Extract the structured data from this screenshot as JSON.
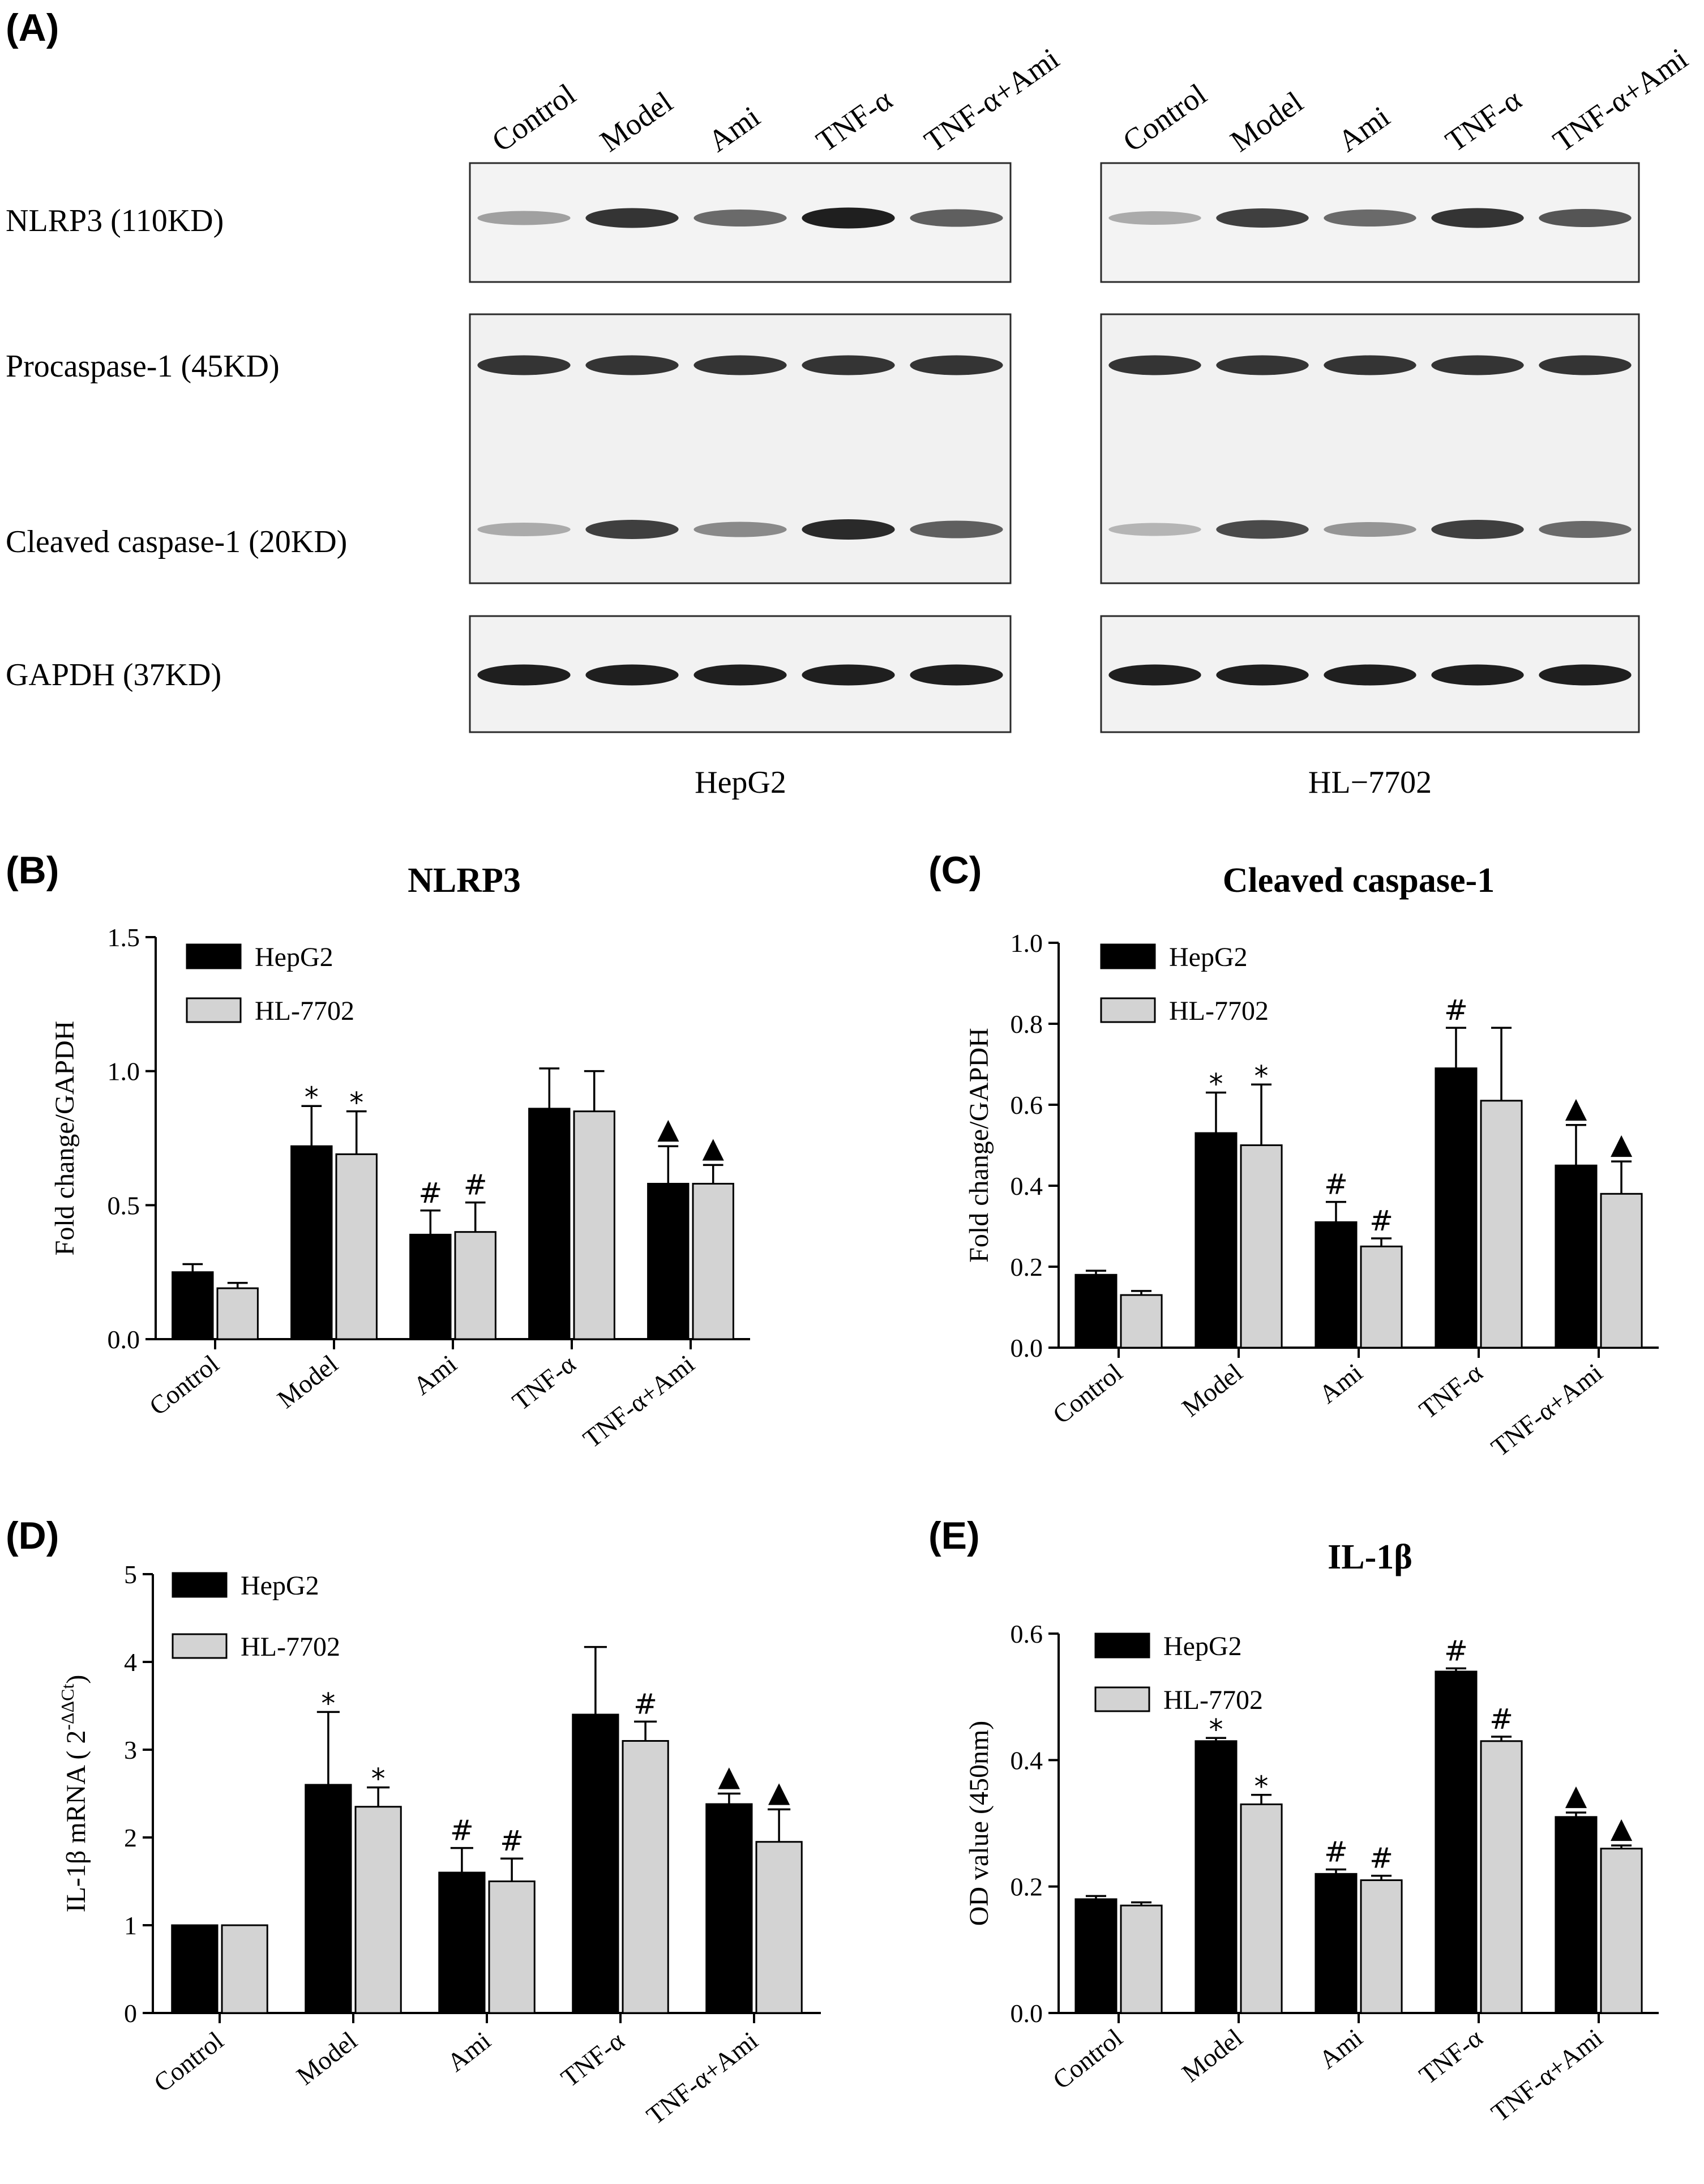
{
  "panel_a": {
    "letter": "(A)",
    "lanes": [
      "Control",
      "Model",
      "Ami",
      "TNF-α",
      "TNF-α+Ami"
    ],
    "row_labels": {
      "nlrp3": "NLRP3 (110KD)",
      "procaspase": "Procaspase-1 (45KD)",
      "cleaved": "Cleaved caspase-1 (20KD)",
      "gapdh": "GAPDH (37KD)"
    },
    "cell_lines": [
      "HepG2",
      "HL−7702"
    ],
    "band_intensity": {
      "HepG2": {
        "nlrp3": [
          0.35,
          0.85,
          0.6,
          0.95,
          0.65
        ],
        "procaspase": [
          0.85,
          0.85,
          0.85,
          0.85,
          0.85
        ],
        "cleaved": [
          0.3,
          0.8,
          0.45,
          0.9,
          0.65
        ],
        "gapdh": [
          0.95,
          0.95,
          0.95,
          0.95,
          0.95
        ]
      },
      "HL-7702": {
        "nlrp3": [
          0.3,
          0.8,
          0.6,
          0.85,
          0.7
        ],
        "procaspase": [
          0.85,
          0.85,
          0.85,
          0.85,
          0.85
        ],
        "cleaved": [
          0.25,
          0.75,
          0.4,
          0.8,
          0.6
        ],
        "gapdh": [
          0.95,
          0.95,
          0.95,
          0.95,
          0.95
        ]
      }
    }
  },
  "chart_data": [
    {
      "id": "B",
      "type": "bar",
      "letter": "(B)",
      "title": "NLRP3",
      "ylabel": "Fold change/GAPDH",
      "ylabel_parts": [
        "Fold change/GAPDH"
      ],
      "ylim": [
        0,
        1.5
      ],
      "yticks": [
        "0.0",
        "0.5",
        "1.0",
        "1.5"
      ],
      "ytick_values": [
        0,
        0.5,
        1.0,
        1.5
      ],
      "categories": [
        "Control",
        "Model",
        "Ami",
        "TNF-α",
        "TNF-α+Ami"
      ],
      "series": [
        {
          "name": "HepG2",
          "color": "#000000",
          "values": [
            0.25,
            0.72,
            0.39,
            0.86,
            0.58
          ],
          "errors": [
            0.03,
            0.15,
            0.09,
            0.15,
            0.14
          ],
          "marks": [
            "",
            "*",
            "#",
            "",
            "▲"
          ]
        },
        {
          "name": "HL-7702",
          "color": "#d3d3d3",
          "values": [
            0.19,
            0.69,
            0.4,
            0.85,
            0.58
          ],
          "errors": [
            0.02,
            0.16,
            0.11,
            0.15,
            0.07
          ],
          "marks": [
            "",
            "*",
            "#",
            "",
            "▲"
          ]
        }
      ]
    },
    {
      "id": "C",
      "type": "bar",
      "letter": "(C)",
      "title": "Cleaved caspase-1",
      "ylabel": "Fold change/GAPDH",
      "ylabel_parts": [
        "Fold change/GAPDH"
      ],
      "ylim": [
        0,
        1.0
      ],
      "yticks": [
        "0.0",
        "0.2",
        "0.4",
        "0.6",
        "0.8",
        "1.0"
      ],
      "ytick_values": [
        0,
        0.2,
        0.4,
        0.6,
        0.8,
        1.0
      ],
      "categories": [
        "Control",
        "Model",
        "Ami",
        "TNF-α",
        "TNF-α+Ami"
      ],
      "series": [
        {
          "name": "HepG2",
          "color": "#000000",
          "values": [
            0.18,
            0.53,
            0.31,
            0.69,
            0.45
          ],
          "errors": [
            0.01,
            0.1,
            0.05,
            0.1,
            0.1
          ],
          "marks": [
            "",
            "*",
            "#",
            "#",
            "▲"
          ]
        },
        {
          "name": "HL-7702",
          "color": "#d3d3d3",
          "values": [
            0.13,
            0.5,
            0.25,
            0.61,
            0.38
          ],
          "errors": [
            0.01,
            0.15,
            0.02,
            0.18,
            0.08
          ],
          "marks": [
            "",
            "*",
            "#",
            "",
            "▲"
          ]
        }
      ]
    },
    {
      "id": "D",
      "type": "bar",
      "letter": "(D)",
      "title": "",
      "ylabel": "IL-1β mRNA ( 2-ΔΔCt )",
      "ylabel_parts": [
        "IL-1β mRNA ( 2",
        "-ΔΔCt",
        ")"
      ],
      "ylim": [
        0,
        5
      ],
      "yticks": [
        "0",
        "1",
        "2",
        "3",
        "4",
        "5"
      ],
      "ytick_values": [
        0,
        1,
        2,
        3,
        4,
        5
      ],
      "categories": [
        "Control",
        "Model",
        "Ami",
        "TNF-α",
        "TNF-α+Ami"
      ],
      "series": [
        {
          "name": "HepG2",
          "color": "#000000",
          "values": [
            1.0,
            2.6,
            1.6,
            3.4,
            2.38
          ],
          "errors": [
            0,
            0.83,
            0.28,
            0.77,
            0.12
          ],
          "marks": [
            "",
            "*",
            "#",
            "",
            "▲"
          ]
        },
        {
          "name": "HL-7702",
          "color": "#d3d3d3",
          "values": [
            1.0,
            2.35,
            1.5,
            3.1,
            1.95
          ],
          "errors": [
            0,
            0.22,
            0.26,
            0.22,
            0.37
          ],
          "marks": [
            "",
            "*",
            "#",
            "#",
            "▲"
          ]
        }
      ]
    },
    {
      "id": "E",
      "type": "bar",
      "letter": "(E)",
      "title": "IL-1β",
      "ylabel": "OD value (450nm)",
      "ylabel_parts": [
        "OD value (450nm)"
      ],
      "ylim": [
        0,
        0.6
      ],
      "yticks": [
        "0.0",
        "0.2",
        "0.4",
        "0.6"
      ],
      "ytick_values": [
        0,
        0.2,
        0.4,
        0.6
      ],
      "categories": [
        "Control",
        "Model",
        "Ami",
        "TNF-α",
        "TNF-α+Ami"
      ],
      "series": [
        {
          "name": "HepG2",
          "color": "#000000",
          "values": [
            0.18,
            0.43,
            0.22,
            0.54,
            0.31
          ],
          "errors": [
            0.005,
            0.005,
            0.007,
            0.005,
            0.007
          ],
          "marks": [
            "",
            "*",
            "#",
            "#",
            "▲"
          ]
        },
        {
          "name": "HL-7702",
          "color": "#d3d3d3",
          "values": [
            0.17,
            0.33,
            0.21,
            0.43,
            0.26
          ],
          "errors": [
            0.005,
            0.015,
            0.007,
            0.007,
            0.005
          ],
          "marks": [
            "",
            "*",
            "#",
            "#",
            "▲"
          ]
        }
      ]
    }
  ]
}
